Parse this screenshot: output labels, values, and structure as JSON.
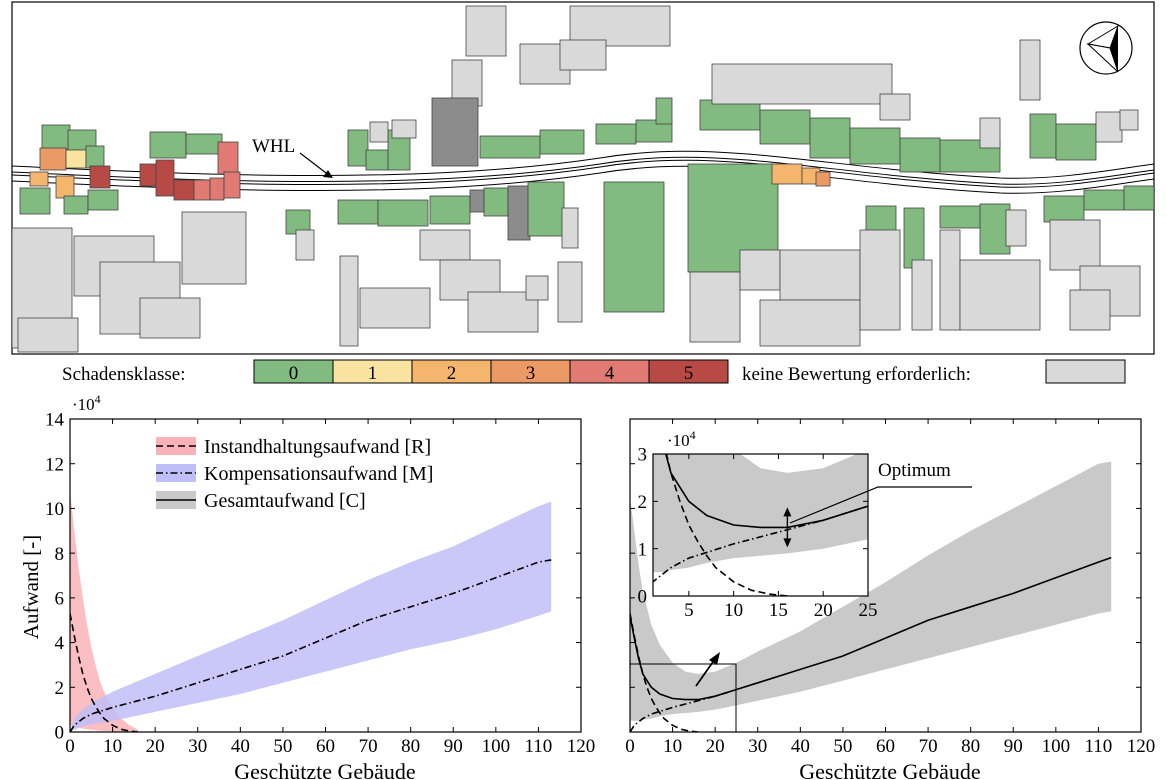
{
  "map": {
    "label_whl": "WHL",
    "legend": {
      "title": "Schadensklasse:",
      "classes": [
        {
          "label": "0",
          "color": "#82bb7f"
        },
        {
          "label": "1",
          "color": "#f8e3a0"
        },
        {
          "label": "2",
          "color": "#f4b66c"
        },
        {
          "label": "3",
          "color": "#ec9a65"
        },
        {
          "label": "4",
          "color": "#e07a72"
        },
        {
          "label": "5",
          "color": "#b84a45"
        }
      ],
      "none_label": "keine Bewertung erforderlich:",
      "none_color": "#d9d9d9",
      "excluded_color": "#8c8c8c"
    }
  },
  "chart_data": [
    {
      "type": "line",
      "xlabel": "Geschützte Gebäude",
      "ylabel": "Aufwand [-]",
      "y_multiplier": "·10",
      "y_exponent": "4",
      "xlim": [
        0,
        120
      ],
      "ylim": [
        0,
        14
      ],
      "xticks": [
        0,
        10,
        20,
        30,
        40,
        50,
        60,
        70,
        80,
        90,
        100,
        110,
        120
      ],
      "yticks": [
        0,
        2,
        4,
        6,
        8,
        10,
        12,
        14
      ],
      "legend_position": "top-left",
      "series": [
        {
          "name": "Instandhaltungsaufwand [R]",
          "style": "dashed",
          "color": "#000000",
          "band_color": "#f9b3b8",
          "x": [
            0,
            1,
            2,
            3,
            4,
            5,
            6,
            7,
            8,
            10,
            12,
            14,
            16
          ],
          "y": [
            5.3,
            4.3,
            3.4,
            2.6,
            2.0,
            1.5,
            1.15,
            0.85,
            0.6,
            0.3,
            0.12,
            0.04,
            0.0
          ],
          "band_lower": [
            0.3,
            0.25,
            0.2,
            0.15,
            0.12,
            0.1,
            0.08,
            0.06,
            0.05,
            0.03,
            0.01,
            0.0,
            0.0
          ],
          "band_upper": [
            10.8,
            9.0,
            7.4,
            6.0,
            4.8,
            3.8,
            3.0,
            2.3,
            1.8,
            1.1,
            0.6,
            0.3,
            0.1
          ]
        },
        {
          "name": "Kompensationsaufwand [M]",
          "style": "dashdot",
          "color": "#000000",
          "band_color": "#bfbef8",
          "x": [
            0,
            1,
            3,
            5,
            10,
            15,
            20,
            30,
            40,
            50,
            60,
            70,
            80,
            90,
            100,
            110,
            113
          ],
          "y": [
            0.0,
            0.3,
            0.6,
            0.8,
            1.1,
            1.35,
            1.6,
            2.2,
            2.8,
            3.4,
            4.2,
            5.0,
            5.6,
            6.2,
            6.9,
            7.6,
            7.7
          ],
          "band_lower": [
            0.0,
            0.1,
            0.25,
            0.35,
            0.5,
            0.7,
            0.9,
            1.3,
            1.7,
            2.2,
            2.7,
            3.2,
            3.7,
            4.1,
            4.6,
            5.2,
            5.4
          ],
          "band_upper": [
            0.0,
            0.6,
            1.0,
            1.3,
            1.8,
            2.2,
            2.6,
            3.4,
            4.2,
            5.0,
            5.9,
            6.8,
            7.6,
            8.3,
            9.2,
            10.1,
            10.3
          ]
        },
        {
          "name": "Gesamtaufwand [C]",
          "style": "solid",
          "color": "#000000",
          "band_color": "#c9c9c9",
          "x": [],
          "y": [],
          "band_lower": [],
          "band_upper": []
        }
      ]
    },
    {
      "type": "line",
      "xlabel": "Geschützte Gebäude",
      "xlim": [
        0,
        120
      ],
      "ylim": [
        0,
        14
      ],
      "xticks": [
        0,
        10,
        20,
        30,
        40,
        50,
        60,
        70,
        80,
        90,
        100,
        110,
        120
      ],
      "series": [
        {
          "name": "Gesamtaufwand [C]",
          "style": "solid",
          "color": "#000000",
          "band_color": "#c9c9c9",
          "x": [
            0,
            1,
            2,
            3,
            5,
            7,
            10,
            13,
            16,
            20,
            25,
            30,
            40,
            50,
            60,
            70,
            80,
            90,
            100,
            110,
            113
          ],
          "y": [
            5.2,
            4.2,
            3.3,
            2.6,
            2.0,
            1.7,
            1.5,
            1.45,
            1.45,
            1.6,
            1.9,
            2.2,
            2.8,
            3.4,
            4.2,
            5.0,
            5.6,
            6.2,
            6.9,
            7.6,
            7.8
          ],
          "band_lower": [
            0.5,
            0.5,
            0.5,
            0.55,
            0.6,
            0.7,
            0.8,
            0.85,
            0.9,
            1.0,
            1.2,
            1.4,
            1.8,
            2.3,
            2.8,
            3.3,
            3.8,
            4.3,
            4.8,
            5.3,
            5.4
          ],
          "band_upper": [
            10.5,
            9.0,
            7.5,
            6.3,
            4.8,
            3.9,
            3.1,
            2.7,
            2.6,
            2.7,
            3.1,
            3.6,
            4.5,
            5.6,
            6.7,
            7.9,
            9.0,
            10.0,
            11.0,
            12.0,
            12.1
          ]
        },
        {
          "name": "Instandhaltungsaufwand [R]",
          "style": "dashed",
          "color": "#000000",
          "x": [
            0,
            1,
            2,
            3,
            4,
            5,
            6,
            7,
            8,
            10,
            12,
            14,
            16
          ],
          "y": [
            5.3,
            4.3,
            3.4,
            2.6,
            2.0,
            1.5,
            1.15,
            0.85,
            0.6,
            0.3,
            0.12,
            0.04,
            0.0
          ]
        },
        {
          "name": "Kompensationsaufwand [M]",
          "style": "dashdot",
          "color": "#000000",
          "x": [
            0,
            1,
            3,
            5,
            10,
            15,
            20,
            25
          ],
          "y": [
            0.0,
            0.3,
            0.6,
            0.8,
            1.1,
            1.35,
            1.6,
            1.9
          ]
        }
      ],
      "inset": {
        "xlim": [
          1,
          25
        ],
        "ylim": [
          0,
          3
        ],
        "xticks": [
          5,
          10,
          15,
          20,
          25
        ],
        "yticks": [
          0,
          1,
          2,
          3
        ],
        "y_multiplier": "·10",
        "y_exponent": "4",
        "optimum_x": 16,
        "annotation": "Optimum"
      }
    }
  ]
}
